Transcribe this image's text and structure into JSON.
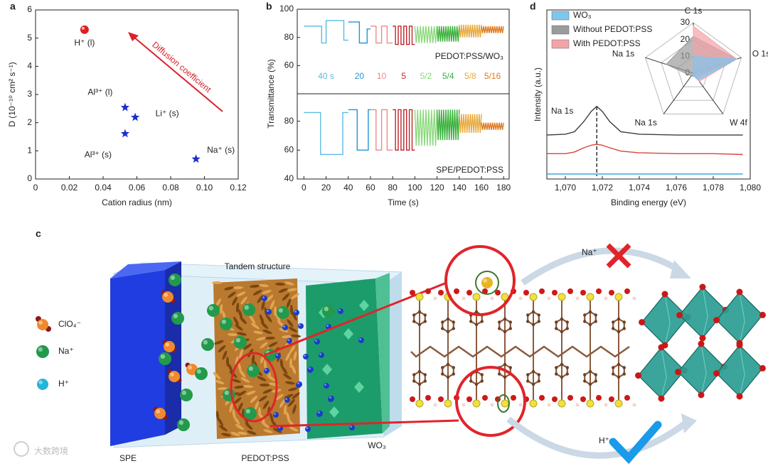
{
  "chart_data": [
    {
      "type": "scatter",
      "panel": "a",
      "xlabel": "Cation radius (nm)",
      "ylabel": "D (10⁻¹⁰ cm² s⁻¹)",
      "xlim": [
        0,
        0.12
      ],
      "xticks": [
        0,
        0.02,
        0.04,
        0.06,
        0.08,
        {
          "value": 0.1,
          "label": "0.10"
        },
        0.12
      ],
      "ylim": [
        0,
        6
      ],
      "yticks": [
        0,
        1,
        2,
        3,
        4,
        5,
        6
      ],
      "annotation": "Diffusion coefficient",
      "annotation_color": "#d9232b",
      "series": [
        {
          "name": "H⁺ (l)",
          "marker": "sphere",
          "color": "#e0201f",
          "x": [
            0.029
          ],
          "values": [
            5.3
          ]
        },
        {
          "name": "Al³⁺ (l)",
          "marker": "star",
          "color": "#1a2fd0",
          "x": [
            0.053
          ],
          "values": [
            2.54
          ]
        },
        {
          "name": "Li⁺ (s)",
          "marker": "star",
          "color": "#1a2fd0",
          "x": [
            0.059
          ],
          "values": [
            2.19
          ]
        },
        {
          "name": "Al³⁺ (s)",
          "marker": "star",
          "color": "#1a2fd0",
          "x": [
            0.053
          ],
          "values": [
            1.61
          ]
        },
        {
          "name": "Na⁺ (s)",
          "marker": "star",
          "color": "#1a2fd0",
          "x": [
            0.095
          ],
          "values": [
            0.71
          ]
        }
      ]
    },
    {
      "type": "line",
      "panel": "b",
      "ylabel": "Transmittance (%)",
      "annotation": "PEDOT:PSS/WO₃",
      "xlim": [
        -6,
        185
      ],
      "ylim": [
        40,
        100
      ],
      "yticks": [
        60,
        80,
        100
      ],
      "series": [
        {
          "name": "40 s",
          "color": "#5bbbe3",
          "x": [
            0,
            16,
            16,
            20,
            20,
            36,
            36,
            40
          ],
          "values": [
            88,
            88,
            76,
            76,
            92,
            92,
            78,
            78
          ]
        },
        {
          "name": "20",
          "color": "#1f95d3",
          "x": [
            40,
            50,
            50,
            57,
            57,
            60
          ],
          "values": [
            91,
            91,
            76,
            76,
            86,
            86
          ]
        },
        {
          "name": "10",
          "color": "#ec8a8a",
          "x": [
            60,
            65,
            65,
            70,
            70,
            75,
            75,
            80
          ],
          "values": [
            88,
            88,
            76,
            76,
            88,
            88,
            76,
            76
          ]
        },
        {
          "name": "5",
          "color": "#c0242b",
          "x": [
            80,
            82.5,
            82.5,
            85,
            85,
            87.5,
            87.5,
            90,
            90,
            92.5,
            92.5,
            95,
            95,
            97.5,
            97.5,
            100
          ],
          "values": [
            88,
            88,
            75,
            75,
            88,
            88,
            75,
            75,
            88,
            88,
            75,
            75,
            88,
            88,
            75,
            75
          ]
        },
        {
          "name": "5/2",
          "color": "#8ad97a",
          "x": [
            100,
            101.25,
            102.5,
            103.75,
            105,
            106.25,
            107.5,
            108.75,
            110,
            111.25,
            112.5,
            113.75,
            115,
            116.25,
            117.5,
            118.75,
            120
          ],
          "values": [
            88,
            76,
            88,
            76,
            88,
            76,
            88,
            76,
            88,
            76,
            88,
            76,
            88,
            76,
            88,
            76,
            88
          ]
        },
        {
          "name": "5/4",
          "color": "#38b03a",
          "x": [
            120,
            121,
            122,
            123,
            124,
            125,
            126,
            127,
            128,
            129,
            130,
            131,
            132,
            133,
            134,
            135,
            136,
            137,
            138,
            139,
            140
          ],
          "values": [
            88,
            77,
            88,
            77,
            88,
            77,
            88,
            77,
            88,
            77,
            88,
            77,
            88,
            77,
            88,
            77,
            88,
            77,
            88,
            77,
            88
          ]
        },
        {
          "name": "5/8",
          "color": "#e8aa3a",
          "x": [
            140,
            141,
            142,
            143,
            144,
            145,
            146,
            147,
            148,
            149,
            150,
            151,
            152,
            153,
            154,
            155,
            156,
            157,
            158,
            159,
            160
          ],
          "values": [
            89,
            80,
            89,
            80,
            89,
            80,
            89,
            80,
            89,
            80,
            89,
            80,
            89,
            80,
            89,
            80,
            89,
            80,
            89,
            80,
            89
          ]
        },
        {
          "name": "5/16",
          "color": "#e07a1e",
          "x": [
            160,
            161,
            162,
            163,
            164,
            165,
            166,
            167,
            168,
            169,
            170,
            171,
            172,
            173,
            174,
            175,
            176,
            177,
            178,
            179,
            180
          ],
          "values": [
            88,
            83,
            88,
            83,
            88,
            83,
            88,
            83,
            88,
            83,
            88,
            83,
            88,
            83,
            88,
            83,
            88,
            83,
            88,
            83,
            88
          ]
        }
      ]
    },
    {
      "type": "line",
      "xlabel": "Time (s)",
      "annotation": "SPE/PEDOT:PSS",
      "xlim": [
        -6,
        185
      ],
      "xticks": [
        0,
        20,
        40,
        60,
        80,
        100,
        120,
        140,
        160,
        180
      ],
      "ylim": [
        40,
        99
      ],
      "yticks": [
        40,
        60,
        80
      ],
      "series": [
        {
          "color": "#5bbbe3",
          "x": [
            0,
            15,
            15,
            35,
            35,
            40
          ],
          "values": [
            86,
            86,
            57,
            57,
            86,
            86
          ]
        },
        {
          "color": "#1f95d3",
          "x": [
            40,
            48,
            48,
            58,
            58,
            60
          ],
          "values": [
            88,
            88,
            60,
            60,
            88,
            88
          ]
        },
        {
          "color": "#ec8a8a",
          "x": [
            60,
            65,
            65,
            70,
            70,
            75,
            75,
            80
          ],
          "values": [
            88,
            88,
            60,
            60,
            88,
            88,
            60,
            60
          ]
        },
        {
          "color": "#c0242b",
          "x": [
            80,
            82.5,
            82.5,
            85,
            85,
            87.5,
            87.5,
            90,
            90,
            92.5,
            92.5,
            95,
            95,
            97.5,
            97.5,
            100
          ],
          "values": [
            88,
            88,
            60,
            60,
            88,
            88,
            60,
            60,
            88,
            88,
            60,
            60,
            88,
            88,
            60,
            60
          ]
        },
        {
          "color": "#8ad97a",
          "x": [
            100,
            101.25,
            102.5,
            103.75,
            105,
            106.25,
            107.5,
            108.75,
            110,
            111.25,
            112.5,
            113.75,
            115,
            116.25,
            117.5,
            118.75,
            120
          ],
          "values": [
            88,
            63,
            88,
            63,
            88,
            63,
            88,
            63,
            88,
            63,
            88,
            63,
            88,
            63,
            88,
            63,
            88
          ]
        },
        {
          "color": "#38b03a",
          "x": [
            120,
            121,
            122,
            123,
            124,
            125,
            126,
            127,
            128,
            129,
            130,
            131,
            132,
            133,
            134,
            135,
            136,
            137,
            138,
            139,
            140
          ],
          "values": [
            88,
            67,
            88,
            67,
            88,
            67,
            88,
            67,
            88,
            67,
            88,
            67,
            88,
            67,
            88,
            67,
            88,
            67,
            88,
            67,
            88
          ]
        },
        {
          "color": "#e8aa3a",
          "x": [
            140,
            141,
            142,
            143,
            144,
            145,
            146,
            147,
            148,
            149,
            150,
            151,
            152,
            153,
            154,
            155,
            156,
            157,
            158,
            159,
            160
          ],
          "values": [
            85,
            72,
            85,
            72,
            85,
            72,
            85,
            72,
            85,
            72,
            85,
            72,
            85,
            72,
            85,
            72,
            85,
            72,
            85,
            72,
            85
          ]
        },
        {
          "color": "#e07a1e",
          "x": [
            160,
            161,
            162,
            163,
            164,
            165,
            166,
            167,
            168,
            169,
            170,
            171,
            172,
            173,
            174,
            175,
            176,
            177,
            178,
            179,
            180
          ],
          "values": [
            79,
            74,
            79,
            74,
            79,
            74,
            79,
            74,
            79,
            74,
            79,
            74,
            79,
            74,
            79,
            74,
            79,
            74,
            79,
            74,
            79
          ]
        }
      ]
    },
    {
      "type": "line",
      "panel": "d",
      "xlabel": "Binding energy (eV)",
      "ylabel": "Intensity (a.u.)",
      "annotation": "Na 1s",
      "xlim": [
        1069,
        1080
      ],
      "xticks": [
        {
          "value": 1070,
          "label": "1,070"
        },
        {
          "value": 1072,
          "label": "1,072"
        },
        {
          "value": 1074,
          "label": "1,074"
        },
        {
          "value": 1076,
          "label": "1,076"
        },
        {
          "value": 1078,
          "label": "1,078"
        },
        {
          "value": 1080,
          "label": "1,080"
        }
      ],
      "ylim": [
        0,
        10
      ],
      "vline": 1071.7,
      "x": [
        1069,
        1070,
        1070.5,
        1071,
        1071.4,
        1071.7,
        1072,
        1072.4,
        1073,
        1074,
        1076,
        1078,
        1079.6
      ],
      "series": [
        {
          "color": "#3d3d3d",
          "values": [
            2.6,
            2.65,
            2.8,
            3.4,
            4.0,
            4.3,
            4.0,
            3.4,
            2.8,
            2.65,
            2.6,
            2.6,
            2.6
          ]
        },
        {
          "color": "#d8433c",
          "values": [
            1.5,
            1.5,
            1.6,
            1.85,
            2.0,
            2.05,
            2.0,
            1.85,
            1.65,
            1.55,
            1.5,
            1.5,
            1.45
          ]
        },
        {
          "color": "#2a9fdc",
          "values": [
            0.3,
            0.3,
            0.3,
            0.3,
            0.3,
            0.3,
            0.3,
            0.3,
            0.3,
            0.3,
            0.3,
            0.3,
            0.3
          ]
        }
      ]
    },
    {
      "type": "radar",
      "axes": [
        "C 1s",
        "O 1s",
        "W 4f",
        "Na 1s",
        "Na 1s"
      ],
      "ylim": [
        0,
        30
      ],
      "yticks": [
        0,
        10,
        20,
        30
      ],
      "series": [
        {
          "name": "WO₃",
          "color": "#7fc6ee",
          "values": [
            10,
            27,
            5,
            1,
            0
          ]
        },
        {
          "name": "Without PEDOT:PSS",
          "color": "#9b9b9b",
          "values": [
            22,
            27,
            3,
            2,
            17
          ]
        },
        {
          "name": "With PEDOT:PSS",
          "color": "#f3a3a8",
          "values": [
            28,
            27,
            6,
            1,
            0
          ]
        }
      ]
    }
  ],
  "illustration": {
    "panel": "c",
    "title": "Tandem structure",
    "layers": [
      "SPE",
      "PEDOT:PSS",
      "WO₃"
    ],
    "legend": [
      "ClO₄⁻",
      "Na⁺",
      "H⁺"
    ],
    "paths": [
      "Na⁺",
      "H⁺"
    ],
    "watermark": "大数跨境"
  }
}
